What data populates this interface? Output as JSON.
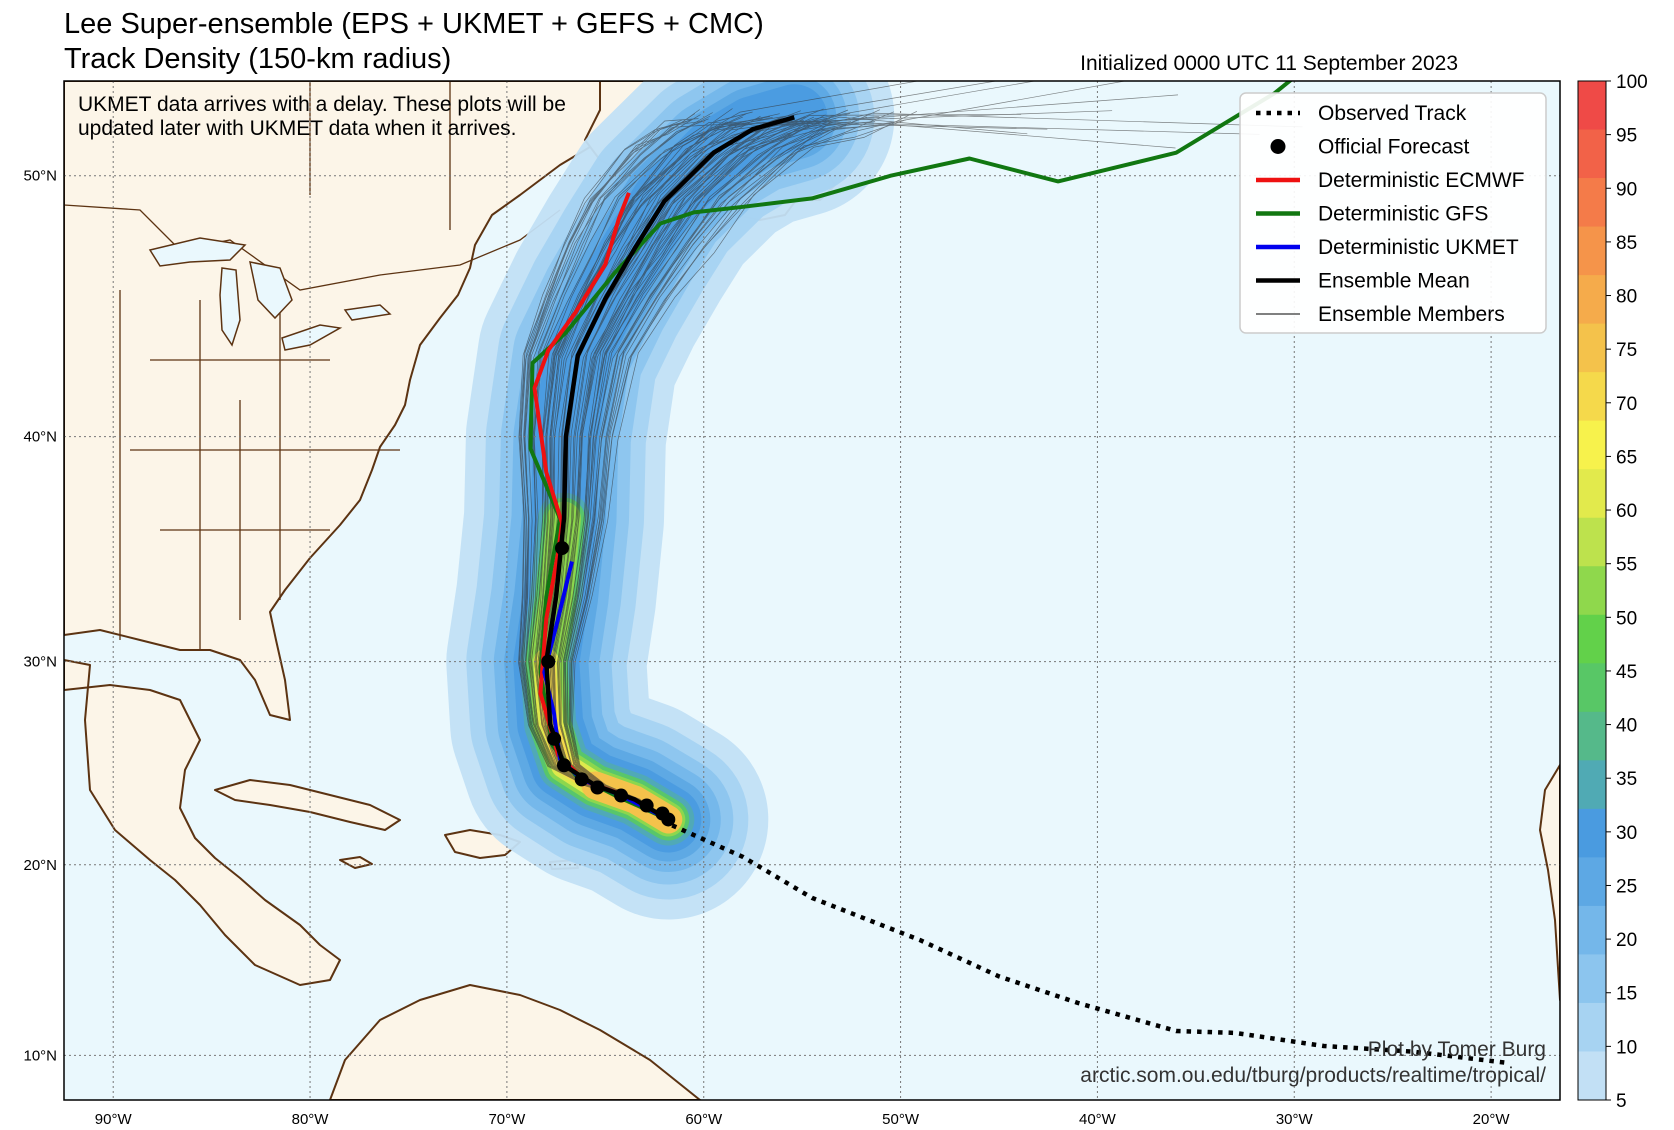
{
  "header": {
    "title_line1": "Lee Super-ensemble (EPS + UKMET + GEFS + CMC)",
    "title_line2": "Track Density (150-km radius)",
    "initialized": "Initialized 0000 UTC 11 September 2023"
  },
  "note": {
    "line1": "UKMET data arrives with a delay. These plots will be",
    "line2": "updated later with UKMET data when it arrives."
  },
  "credit": {
    "line1": "Plot by Tomer Burg",
    "line2": "arctic.som.ou.edu/tburg/products/realtime/tropical/"
  },
  "legend": [
    {
      "label": "Observed Track",
      "style": "dotted",
      "color": "#000000"
    },
    {
      "label": "Official Forecast",
      "style": "dot",
      "color": "#000000"
    },
    {
      "label": "Deterministic ECMWF",
      "style": "line",
      "color": "#ee1111"
    },
    {
      "label": "Deterministic GFS",
      "style": "line",
      "color": "#117711"
    },
    {
      "label": "Deterministic UKMET",
      "style": "line",
      "color": "#0000ee"
    },
    {
      "label": "Ensemble Mean",
      "style": "line",
      "color": "#000000"
    },
    {
      "label": "Ensemble Members",
      "style": "thin",
      "color": "#000000"
    }
  ],
  "axes": {
    "lon_ticks": [
      {
        "lon": -90,
        "label": "90°W"
      },
      {
        "lon": -80,
        "label": "80°W"
      },
      {
        "lon": -70,
        "label": "70°W"
      },
      {
        "lon": -60,
        "label": "60°W"
      },
      {
        "lon": -50,
        "label": "50°W"
      },
      {
        "lon": -40,
        "label": "40°W"
      },
      {
        "lon": -30,
        "label": "30°W"
      },
      {
        "lon": -20,
        "label": "20°W"
      }
    ],
    "lat_ticks": [
      {
        "lat": 10,
        "label": "10°N"
      },
      {
        "lat": 20,
        "label": "20°N"
      },
      {
        "lat": 30,
        "label": "30°N"
      },
      {
        "lat": 40,
        "label": "40°N"
      },
      {
        "lat": 50,
        "label": "50°N"
      }
    ]
  },
  "colorbar": {
    "ticks": [
      "5",
      "10",
      "15",
      "20",
      "25",
      "30",
      "35",
      "40",
      "45",
      "50",
      "55",
      "60",
      "65",
      "70",
      "75",
      "80",
      "85",
      "90",
      "95",
      "100"
    ],
    "colors": [
      "#c2e0f5",
      "#a7d3f2",
      "#8cc5ee",
      "#74b7ea",
      "#5da8e4",
      "#4a9be0",
      "#50aab4",
      "#55b98a",
      "#58c766",
      "#62d14a",
      "#8fd84c",
      "#bde24d",
      "#e2ea4c",
      "#f7f24c",
      "#f5d94b",
      "#f4c24b",
      "#f5ab4b",
      "#f5944a",
      "#f47b49",
      "#f26248",
      "#ef4a47"
    ]
  },
  "colors": {
    "ocean": "#eaf8fd",
    "land": "#fcf5e8",
    "coast": "#5c3312"
  },
  "map_data": {
    "observed_track": [
      [
        -61.6,
        22.0
      ],
      [
        -58,
        20.4
      ],
      [
        -54.5,
        18.3
      ],
      [
        -49,
        16.1
      ],
      [
        -45,
        14.2
      ],
      [
        -41,
        12.8
      ],
      [
        -36,
        11.3
      ],
      [
        -33,
        11.2
      ],
      [
        -28.5,
        10.5
      ],
      [
        -24,
        10.2
      ],
      [
        -19.2,
        9.6
      ]
    ],
    "official_forecast": [
      [
        -61.8,
        22.3
      ],
      [
        -62.1,
        22.6
      ],
      [
        -62.9,
        23.0
      ],
      [
        -64.2,
        23.5
      ],
      [
        -65.4,
        23.9
      ],
      [
        -66.2,
        24.3
      ],
      [
        -67.1,
        25.0
      ],
      [
        -67.6,
        26.3
      ],
      [
        -67.9,
        30.0
      ],
      [
        -67.2,
        35.2
      ]
    ],
    "ensemble_mean": [
      [
        -61.8,
        22.3
      ],
      [
        -63.5,
        23.3
      ],
      [
        -65.5,
        24.0
      ],
      [
        -67.1,
        25.0
      ],
      [
        -67.8,
        27.0
      ],
      [
        -68.0,
        30.0
      ],
      [
        -67.5,
        33.0
      ],
      [
        -67.1,
        36.5
      ],
      [
        -67.0,
        40.0
      ],
      [
        -66.4,
        43.3
      ],
      [
        -65,
        45.5
      ],
      [
        -63.5,
        47.4
      ],
      [
        -62,
        49.1
      ],
      [
        -59.5,
        50.8
      ],
      [
        -57.5,
        51.6
      ],
      [
        -55.4,
        52.0
      ]
    ],
    "ecmwf": [
      [
        -61.8,
        22.3
      ],
      [
        -64.0,
        23.5
      ],
      [
        -66.0,
        24.2
      ],
      [
        -67.4,
        25.5
      ],
      [
        -68.3,
        28.5
      ],
      [
        -68.0,
        32.0
      ],
      [
        -67.4,
        35.0
      ],
      [
        -67.2,
        36.3
      ],
      [
        -68.0,
        38.5
      ],
      [
        -68.6,
        42.0
      ],
      [
        -67.9,
        43.5
      ],
      [
        -66.5,
        45.0
      ],
      [
        -65.0,
        46.8
      ],
      [
        -64.3,
        48.5
      ],
      [
        -63.8,
        49.4
      ]
    ],
    "gfs": [
      [
        -61.8,
        22.3
      ],
      [
        -64.5,
        23.5
      ],
      [
        -66.5,
        24.5
      ],
      [
        -67.7,
        26.0
      ],
      [
        -68.3,
        29.5
      ],
      [
        -68.0,
        33.0
      ],
      [
        -67.3,
        36.5
      ],
      [
        -68.8,
        39.5
      ],
      [
        -68.7,
        43.0
      ],
      [
        -67.0,
        44.2
      ],
      [
        -64.5,
        46.5
      ],
      [
        -62.2,
        48.3
      ],
      [
        -60.5,
        48.7
      ],
      [
        -58,
        48.9
      ],
      [
        -54.5,
        49.2
      ],
      [
        -50.5,
        50.0
      ],
      [
        -46.5,
        50.6
      ],
      [
        -42,
        49.8
      ],
      [
        -36,
        50.8
      ],
      [
        -31,
        52.8
      ],
      [
        -27.5,
        54.6
      ]
    ],
    "ukmet": [
      [
        -61.8,
        22.3
      ],
      [
        -64.2,
        23.5
      ],
      [
        -66.2,
        24.3
      ],
      [
        -67.3,
        25.3
      ],
      [
        -67.6,
        27.5
      ],
      [
        -68.1,
        29.5
      ],
      [
        -67.4,
        32.0
      ],
      [
        -66.7,
        34.6
      ]
    ]
  }
}
